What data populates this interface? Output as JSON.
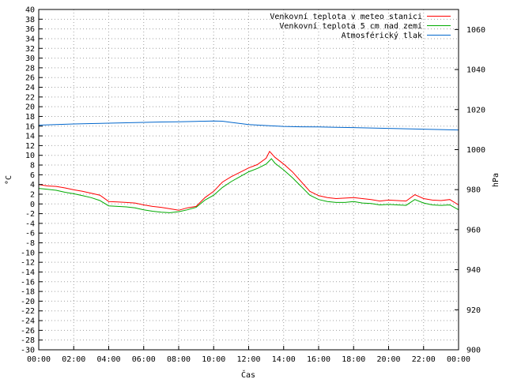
{
  "chart_data": {
    "type": "line",
    "title": "",
    "xlabel": "Čas",
    "ylabel": "°C",
    "y2label": "hPa",
    "xlim": [
      0,
      24
    ],
    "ylim": [
      -30,
      40
    ],
    "y2lim": [
      900,
      1070
    ],
    "x_tick_labels": [
      "00:00",
      "02:00",
      "04:00",
      "06:00",
      "08:00",
      "10:00",
      "12:00",
      "14:00",
      "16:00",
      "18:00",
      "20:00",
      "22:00",
      "00:00"
    ],
    "y_ticks": [
      40,
      38,
      36,
      34,
      32,
      30,
      28,
      26,
      24,
      22,
      20,
      18,
      16,
      14,
      12,
      10,
      8,
      6,
      4,
      2,
      0,
      -2,
      -4,
      -6,
      -8,
      -10,
      -12,
      -14,
      -16,
      -18,
      -20,
      -22,
      -24,
      -26,
      -28,
      -30
    ],
    "y2_ticks": [
      1060,
      1040,
      1020,
      1000,
      980,
      960,
      940,
      920,
      900
    ],
    "legend_position": "top-right",
    "series": [
      {
        "name": "Venkovní teplota v meteo stanici",
        "color": "#ff0000",
        "axis": "left",
        "x": [
          0,
          0.5,
          1,
          1.5,
          2,
          2.5,
          3,
          3.5,
          4,
          4.5,
          5,
          5.5,
          6,
          6.5,
          7,
          7.5,
          8,
          8.5,
          9,
          9.5,
          10,
          10.5,
          11,
          11.5,
          12,
          12.5,
          13,
          13.2,
          13.5,
          14,
          14.5,
          15,
          15.5,
          16,
          16.5,
          17,
          17.5,
          18,
          18.5,
          19,
          19.5,
          20,
          20.5,
          21,
          21.5,
          22,
          22.5,
          23,
          23.5,
          24
        ],
        "values": [
          4,
          3.7,
          3.6,
          3.3,
          2.9,
          2.6,
          2.2,
          1.8,
          0.5,
          0.4,
          0.3,
          0.2,
          -0.2,
          -0.5,
          -0.7,
          -1.0,
          -1.3,
          -0.8,
          -0.5,
          1.3,
          2.6,
          4.5,
          5.6,
          6.5,
          7.4,
          8.1,
          9.4,
          10.8,
          9.6,
          8.2,
          6.6,
          4.6,
          2.6,
          1.7,
          1.3,
          1.1,
          1.2,
          1.3,
          1.1,
          0.9,
          0.6,
          0.8,
          0.7,
          0.6,
          1.9,
          1.1,
          0.8,
          0.7,
          0.9,
          -0.2
        ]
      },
      {
        "name": "Venkovní teplota 5 cm nad zemí",
        "color": "#00aa00",
        "axis": "left",
        "x": [
          0,
          0.5,
          1,
          1.5,
          2,
          2.5,
          3,
          3.5,
          4,
          4.5,
          5,
          5.5,
          6,
          6.5,
          7,
          7.5,
          8,
          8.5,
          9,
          9.5,
          10,
          10.5,
          11,
          11.5,
          12,
          12.5,
          13,
          13.3,
          13.5,
          14,
          14.5,
          15,
          15.5,
          16,
          16.5,
          17,
          17.5,
          18,
          18.5,
          19,
          19.5,
          20,
          20.5,
          21,
          21.5,
          22,
          22.5,
          23,
          23.5,
          24
        ],
        "values": [
          3.2,
          3.0,
          2.8,
          2.4,
          2.1,
          1.7,
          1.3,
          0.7,
          -0.4,
          -0.5,
          -0.6,
          -0.8,
          -1.2,
          -1.5,
          -1.7,
          -1.8,
          -1.6,
          -1.2,
          -0.7,
          0.8,
          1.8,
          3.4,
          4.6,
          5.6,
          6.6,
          7.3,
          8.2,
          9.3,
          8.4,
          7.0,
          5.4,
          3.6,
          1.8,
          0.9,
          0.5,
          0.3,
          0.3,
          0.5,
          0.2,
          0.1,
          -0.2,
          -0.1,
          -0.2,
          -0.3,
          0.9,
          0.2,
          -0.2,
          -0.3,
          -0.2,
          -1.2
        ]
      },
      {
        "name": "Atmosférický tlak",
        "color": "#0066cc",
        "axis": "right",
        "x": [
          0,
          1,
          2,
          3,
          4,
          5,
          6,
          7,
          8,
          9,
          10,
          10.5,
          11,
          12,
          13,
          14,
          15,
          16,
          17,
          18,
          19,
          20,
          21,
          22,
          23,
          24
        ],
        "values": [
          1012.2,
          1012.5,
          1012.8,
          1013.0,
          1013.2,
          1013.4,
          1013.6,
          1013.8,
          1013.9,
          1014.1,
          1014.3,
          1014.2,
          1013.6,
          1012.5,
          1012.0,
          1011.6,
          1011.4,
          1011.3,
          1011.1,
          1011.0,
          1010.8,
          1010.6,
          1010.4,
          1010.2,
          1010.0,
          1009.8
        ]
      }
    ]
  }
}
